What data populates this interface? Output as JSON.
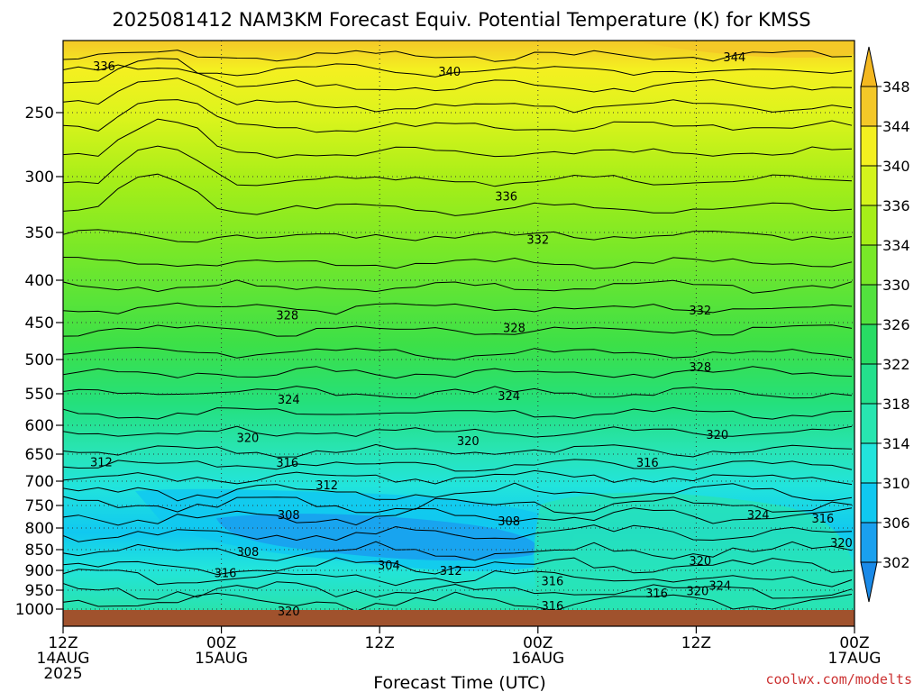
{
  "chart_data": {
    "type": "heatmap",
    "title": "2025081412 NAM3KM Forecast Equiv. Potential Temperature (K) for KMSS",
    "xlabel": "Forecast Time (UTC)",
    "ylabel": "",
    "credit": "coolwx.com/modelts",
    "x_ticks": [
      {
        "hour": 0,
        "l1": "12Z",
        "l2": "14AUG",
        "l3": "2025"
      },
      {
        "hour": 12,
        "l1": "00Z",
        "l2": "15AUG",
        "l3": ""
      },
      {
        "hour": 24,
        "l1": "12Z",
        "l2": "",
        "l3": ""
      },
      {
        "hour": 36,
        "l1": "00Z",
        "l2": "16AUG",
        "l3": ""
      },
      {
        "hour": 48,
        "l1": "12Z",
        "l2": "",
        "l3": ""
      },
      {
        "hour": 60,
        "l1": "00Z",
        "l2": "17AUG",
        "l3": ""
      }
    ],
    "x_range_hours": [
      0,
      60
    ],
    "y_axis": "pressure (hPa), top 200",
    "y_ticks": [
      250,
      300,
      350,
      400,
      450,
      500,
      550,
      600,
      650,
      700,
      750,
      800,
      850,
      900,
      950,
      1000
    ],
    "y_range": [
      200,
      1025
    ],
    "grid": true,
    "colorbar": {
      "levels": [
        302,
        306,
        310,
        314,
        318,
        322,
        326,
        330,
        334,
        336,
        340,
        344,
        348
      ],
      "colors": [
        "#1aa0ee",
        "#10c8f0",
        "#22e4dc",
        "#28e6b0",
        "#24e08c",
        "#28dc64",
        "#52e23e",
        "#78e828",
        "#a6ee18",
        "#d4f41c",
        "#f4f020",
        "#f4c828"
      ]
    },
    "contour_labels": [
      {
        "text": "336",
        "hour": 3.1,
        "p": 218
      },
      {
        "text": "340",
        "hour": 29.3,
        "p": 222
      },
      {
        "text": "344",
        "hour": 50.9,
        "p": 212
      },
      {
        "text": "336",
        "hour": 33.6,
        "p": 318
      },
      {
        "text": "332",
        "hour": 36.0,
        "p": 358
      },
      {
        "text": "328",
        "hour": 17.0,
        "p": 442
      },
      {
        "text": "328",
        "hour": 34.2,
        "p": 458
      },
      {
        "text": "332",
        "hour": 48.3,
        "p": 436
      },
      {
        "text": "328",
        "hour": 48.3,
        "p": 512
      },
      {
        "text": "324",
        "hour": 17.1,
        "p": 560
      },
      {
        "text": "324",
        "hour": 33.8,
        "p": 554
      },
      {
        "text": "320",
        "hour": 14.0,
        "p": 623
      },
      {
        "text": "320",
        "hour": 30.7,
        "p": 628
      },
      {
        "text": "320",
        "hour": 49.6,
        "p": 617
      },
      {
        "text": "316",
        "hour": 17.0,
        "p": 667
      },
      {
        "text": "316",
        "hour": 44.3,
        "p": 667
      },
      {
        "text": "312",
        "hour": 2.9,
        "p": 666
      },
      {
        "text": "312",
        "hour": 20.0,
        "p": 709
      },
      {
        "text": "308",
        "hour": 17.1,
        "p": 772
      },
      {
        "text": "308",
        "hour": 33.8,
        "p": 786
      },
      {
        "text": "308",
        "hour": 14.0,
        "p": 856
      },
      {
        "text": "304",
        "hour": 24.7,
        "p": 889
      },
      {
        "text": "312",
        "hour": 29.4,
        "p": 902
      },
      {
        "text": "316",
        "hour": 12.3,
        "p": 908
      },
      {
        "text": "316",
        "hour": 37.1,
        "p": 928
      },
      {
        "text": "316",
        "hour": 45.0,
        "p": 960
      },
      {
        "text": "320",
        "hour": 48.1,
        "p": 953
      },
      {
        "text": "320",
        "hour": 48.3,
        "p": 878
      },
      {
        "text": "324",
        "hour": 49.8,
        "p": 940
      },
      {
        "text": "324",
        "hour": 52.7,
        "p": 772
      },
      {
        "text": "316",
        "hour": 57.6,
        "p": 780
      },
      {
        "text": "320",
        "hour": 59.0,
        "p": 835
      },
      {
        "text": "316",
        "hour": 37.1,
        "p": 993
      },
      {
        "text": "320",
        "hour": 17.1,
        "p": 1004
      }
    ]
  }
}
